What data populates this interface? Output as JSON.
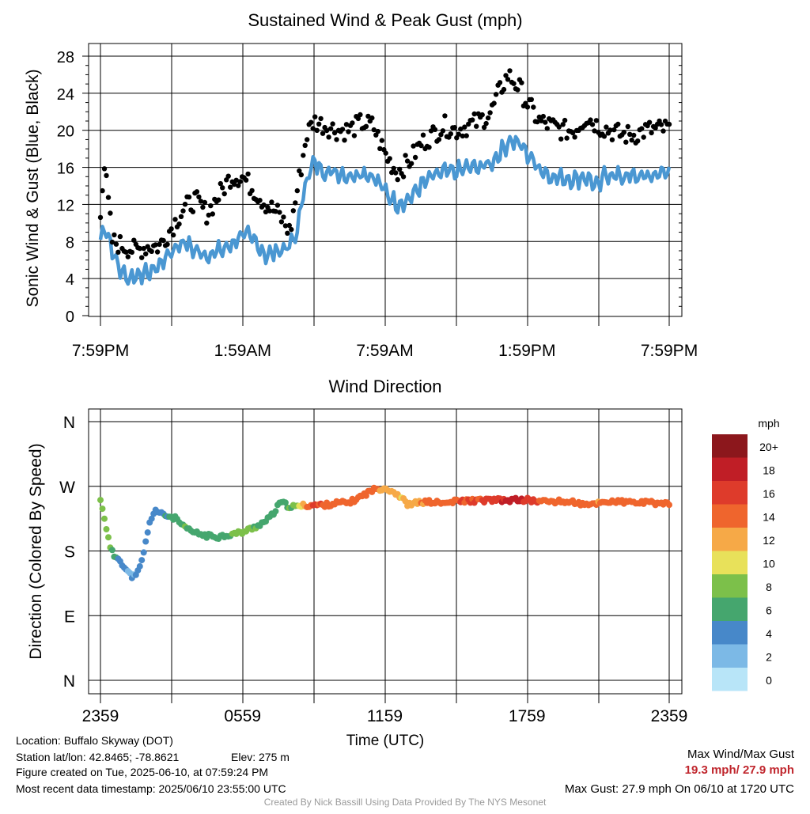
{
  "speed_chart": {
    "type": "scatter",
    "title": "Sustained Wind & Peak Gust (mph)",
    "ylabel": "Sonic Wind & Gust (Blue, Black)",
    "x_tick_labels": [
      "7:59PM",
      "1:59AM",
      "7:59AM",
      "1:59PM",
      "7:59PM"
    ],
    "y_tick_labels": [
      "0",
      "4",
      "8",
      "12",
      "16",
      "20",
      "24",
      "28"
    ],
    "ylim": [
      0,
      29
    ],
    "x_hours": [
      0,
      24
    ],
    "grid": true,
    "series_colors": {
      "wind": "#4a97d2",
      "gust": "#000000"
    },
    "wind_anchors": [
      [
        0,
        8.2
      ],
      [
        0.2,
        9.8
      ],
      [
        0.5,
        7
      ],
      [
        0.8,
        5
      ],
      [
        1.2,
        4
      ],
      [
        1.6,
        4.5
      ],
      [
        2,
        4.5
      ],
      [
        2.5,
        5.5
      ],
      [
        3,
        7
      ],
      [
        3.5,
        8
      ],
      [
        4,
        7
      ],
      [
        4.5,
        6.5
      ],
      [
        5,
        7
      ],
      [
        5.5,
        7.5
      ],
      [
        6,
        9
      ],
      [
        6.5,
        8
      ],
      [
        7,
        6.5
      ],
      [
        7.5,
        7
      ],
      [
        8,
        7.5
      ],
      [
        8.3,
        9
      ],
      [
        8.6,
        14
      ],
      [
        9,
        16.5
      ],
      [
        9.5,
        15.5
      ],
      [
        10,
        15.5
      ],
      [
        10.5,
        15
      ],
      [
        11,
        15.5
      ],
      [
        11.5,
        15
      ],
      [
        12,
        13.5
      ],
      [
        12.5,
        12
      ],
      [
        13,
        12.5
      ],
      [
        13.5,
        14
      ],
      [
        14,
        15
      ],
      [
        14.5,
        15.5
      ],
      [
        15,
        15.5
      ],
      [
        15.5,
        16
      ],
      [
        16,
        16
      ],
      [
        16.5,
        16.5
      ],
      [
        17,
        18
      ],
      [
        17.3,
        19
      ],
      [
        17.7,
        18.5
      ],
      [
        18,
        17.5
      ],
      [
        18.5,
        16
      ],
      [
        19,
        15
      ],
      [
        20,
        14.7
      ],
      [
        20.5,
        15
      ],
      [
        21,
        13.8
      ],
      [
        21.3,
        15.3
      ],
      [
        22,
        15
      ],
      [
        23,
        15
      ],
      [
        24,
        15.5
      ]
    ],
    "gust_anchors": [
      [
        0,
        11.5
      ],
      [
        0.15,
        16.5
      ],
      [
        0.3,
        13
      ],
      [
        0.5,
        8
      ],
      [
        1,
        7.5
      ],
      [
        1.5,
        7
      ],
      [
        2,
        7.5
      ],
      [
        2.5,
        7.5
      ],
      [
        3,
        9.5
      ],
      [
        3.5,
        11.5
      ],
      [
        4,
        12.5
      ],
      [
        4.5,
        11
      ],
      [
        5,
        13
      ],
      [
        5.5,
        15
      ],
      [
        6,
        15
      ],
      [
        6.5,
        13.5
      ],
      [
        7,
        12
      ],
      [
        7.5,
        11
      ],
      [
        8,
        9
      ],
      [
        8.4,
        15
      ],
      [
        8.7,
        19.5
      ],
      [
        9,
        21
      ],
      [
        9.5,
        20.5
      ],
      [
        10,
        20
      ],
      [
        10.5,
        20
      ],
      [
        11,
        20.8
      ],
      [
        11.5,
        20.5
      ],
      [
        12,
        17.5
      ],
      [
        12.5,
        15.5
      ],
      [
        13,
        16.5
      ],
      [
        13.5,
        18.5
      ],
      [
        14,
        19.5
      ],
      [
        14.5,
        20.5
      ],
      [
        15,
        20
      ],
      [
        15.5,
        20.5
      ],
      [
        16,
        21
      ],
      [
        16.5,
        22
      ],
      [
        16.8,
        24
      ],
      [
        17.2,
        26
      ],
      [
        17.7,
        24.5
      ],
      [
        18,
        23
      ],
      [
        18.5,
        21
      ],
      [
        19,
        20.5
      ],
      [
        19.5,
        20
      ],
      [
        20,
        20
      ],
      [
        20.5,
        21.5
      ],
      [
        21,
        20.5
      ],
      [
        21.5,
        20
      ],
      [
        22,
        19.5
      ],
      [
        22.5,
        19.5
      ],
      [
        23,
        20
      ],
      [
        24,
        20.2
      ]
    ],
    "n_points": 290
  },
  "direction_chart": {
    "type": "scatter",
    "title": "Wind Direction",
    "ylabel": "Direction (Colored By Speed)",
    "xlabel": "Time (UTC)",
    "x_tick_labels": [
      "2359",
      "0559",
      "1159",
      "1759",
      "2359"
    ],
    "y_tick_labels": [
      "N",
      "E",
      "S",
      "W",
      "N"
    ],
    "ylim": [
      0,
      360
    ],
    "grid": true,
    "direction_anchors": [
      [
        0,
        250
      ],
      [
        0.1,
        238
      ],
      [
        0.25,
        212
      ],
      [
        0.4,
        185
      ],
      [
        0.6,
        172
      ],
      [
        0.8,
        170
      ],
      [
        1,
        157
      ],
      [
        1.3,
        145
      ],
      [
        1.5,
        145
      ],
      [
        1.7,
        160
      ],
      [
        1.9,
        190
      ],
      [
        2.1,
        222
      ],
      [
        2.3,
        238
      ],
      [
        2.5,
        232
      ],
      [
        2.8,
        229
      ],
      [
        3.2,
        225
      ],
      [
        3.5,
        213
      ],
      [
        4,
        205
      ],
      [
        4.5,
        201
      ],
      [
        5,
        200
      ],
      [
        5.5,
        203
      ],
      [
        6,
        206
      ],
      [
        6.5,
        213
      ],
      [
        7,
        222
      ],
      [
        7.3,
        232
      ],
      [
        7.6,
        248
      ],
      [
        7.9,
        243
      ],
      [
        8.2,
        241
      ],
      [
        8.5,
        243
      ],
      [
        9,
        244
      ],
      [
        9.5,
        244
      ],
      [
        10,
        247
      ],
      [
        10.5,
        247
      ],
      [
        11,
        256
      ],
      [
        11.5,
        265
      ],
      [
        12,
        268
      ],
      [
        12.5,
        260
      ],
      [
        13,
        244
      ],
      [
        13.5,
        248
      ],
      [
        14,
        248
      ],
      [
        14.5,
        246
      ],
      [
        15,
        249
      ],
      [
        15.5,
        250
      ],
      [
        16,
        250
      ],
      [
        16.5,
        251
      ],
      [
        17,
        250
      ],
      [
        17.5,
        251
      ],
      [
        18,
        251
      ],
      [
        18.5,
        249
      ],
      [
        19,
        249
      ],
      [
        20,
        248
      ],
      [
        20.5,
        243
      ],
      [
        21,
        247
      ],
      [
        21.5,
        249
      ],
      [
        22,
        248
      ],
      [
        23,
        247
      ],
      [
        24,
        246
      ]
    ]
  },
  "colorbar": {
    "unit": "mph",
    "levels": [
      {
        "label": "0",
        "color": "#b8e5f8"
      },
      {
        "label": "2",
        "color": "#7cb9e6"
      },
      {
        "label": "4",
        "color": "#4788c9"
      },
      {
        "label": "6",
        "color": "#45a66e"
      },
      {
        "label": "8",
        "color": "#7cc04a"
      },
      {
        "label": "10",
        "color": "#e8e15a"
      },
      {
        "label": "12",
        "color": "#f6a947"
      },
      {
        "label": "14",
        "color": "#ef652d"
      },
      {
        "label": "16",
        "color": "#de3b2b"
      },
      {
        "label": "18",
        "color": "#c01e26"
      },
      {
        "label": "20+",
        "color": "#8c171c"
      }
    ]
  },
  "footer": {
    "location": "Location: Buffalo Skyway (DOT)",
    "station": "Station lat/lon: 42.8465; -78.8621",
    "elev": "Elev: 275 m",
    "created": "Figure created on Tue, 2025-06-10, at 07:59:24 PM",
    "recent": "Most recent data timestamp: 2025/06/10 23:55:00 UTC",
    "max_header": "Max Wind/Max Gust",
    "max_values": "19.3 mph/ 27.9 mph",
    "max_gust_line": "Max Gust: 27.9 mph On 06/10 at 1720 UTC",
    "credit": "Created By Nick Bassill Using Data Provided By The NYS Mesonet"
  }
}
